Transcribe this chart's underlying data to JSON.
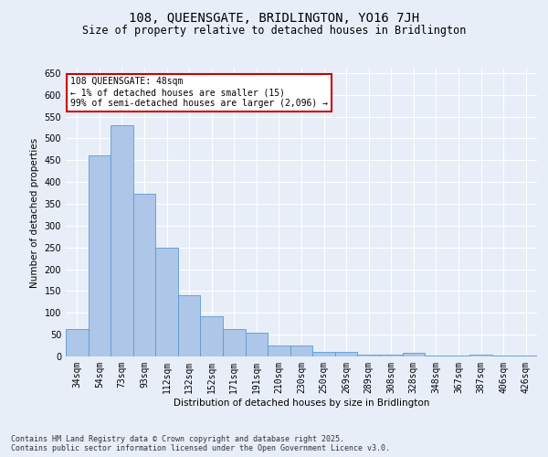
{
  "title": "108, QUEENSGATE, BRIDLINGTON, YO16 7JH",
  "subtitle": "Size of property relative to detached houses in Bridlington",
  "xlabel": "Distribution of detached houses by size in Bridlington",
  "ylabel": "Number of detached properties",
  "categories": [
    "34sqm",
    "54sqm",
    "73sqm",
    "93sqm",
    "112sqm",
    "132sqm",
    "152sqm",
    "171sqm",
    "191sqm",
    "210sqm",
    "230sqm",
    "250sqm",
    "269sqm",
    "289sqm",
    "308sqm",
    "328sqm",
    "348sqm",
    "367sqm",
    "387sqm",
    "406sqm",
    "426sqm"
  ],
  "values": [
    62,
    460,
    530,
    372,
    249,
    140,
    92,
    62,
    54,
    25,
    25,
    11,
    11,
    5,
    5,
    9,
    3,
    3,
    5,
    3,
    3
  ],
  "bar_color": "#aec6e8",
  "bar_edge_color": "#5a9bd5",
  "annotation_text": "108 QUEENSGATE: 48sqm\n← 1% of detached houses are smaller (15)\n99% of semi-detached houses are larger (2,096) →",
  "annotation_box_color": "#ffffff",
  "annotation_box_edge_color": "#cc0000",
  "ylim": [
    0,
    660
  ],
  "yticks": [
    0,
    50,
    100,
    150,
    200,
    250,
    300,
    350,
    400,
    450,
    500,
    550,
    600,
    650
  ],
  "footer_line1": "Contains HM Land Registry data © Crown copyright and database right 2025.",
  "footer_line2": "Contains public sector information licensed under the Open Government Licence v3.0.",
  "bg_color": "#e8eef8",
  "plot_bg_color": "#e8eef8",
  "grid_color": "#ffffff",
  "title_fontsize": 10,
  "subtitle_fontsize": 8.5,
  "axis_label_fontsize": 7.5,
  "tick_fontsize": 7,
  "annotation_fontsize": 7,
  "footer_fontsize": 6
}
